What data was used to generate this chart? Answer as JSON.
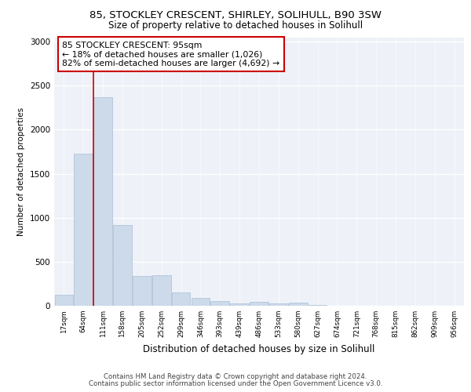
{
  "title1": "85, STOCKLEY CRESCENT, SHIRLEY, SOLIHULL, B90 3SW",
  "title2": "Size of property relative to detached houses in Solihull",
  "xlabel": "Distribution of detached houses by size in Solihull",
  "ylabel": "Number of detached properties",
  "categories": [
    "17sqm",
    "64sqm",
    "111sqm",
    "158sqm",
    "205sqm",
    "252sqm",
    "299sqm",
    "346sqm",
    "393sqm",
    "439sqm",
    "486sqm",
    "533sqm",
    "580sqm",
    "627sqm",
    "674sqm",
    "721sqm",
    "768sqm",
    "815sqm",
    "862sqm",
    "909sqm",
    "956sqm"
  ],
  "values": [
    125,
    1725,
    2370,
    920,
    340,
    345,
    155,
    85,
    50,
    25,
    45,
    25,
    35,
    5,
    3,
    1,
    1,
    1,
    1,
    1,
    1
  ],
  "bar_color": "#ccdaea",
  "bar_edge_color": "#aabdd4",
  "vline_color": "#cc0000",
  "vline_x": 1.5,
  "annotation_text": "85 STOCKLEY CRESCENT: 95sqm\n← 18% of detached houses are smaller (1,026)\n82% of semi-detached houses are larger (4,692) →",
  "annotation_box_color": "white",
  "annotation_box_edge": "#cc0000",
  "footer1": "Contains HM Land Registry data © Crown copyright and database right 2024.",
  "footer2": "Contains public sector information licensed under the Open Government Licence v3.0.",
  "ylim": [
    0,
    3050
  ],
  "plot_bg_color": "#eef2f8"
}
